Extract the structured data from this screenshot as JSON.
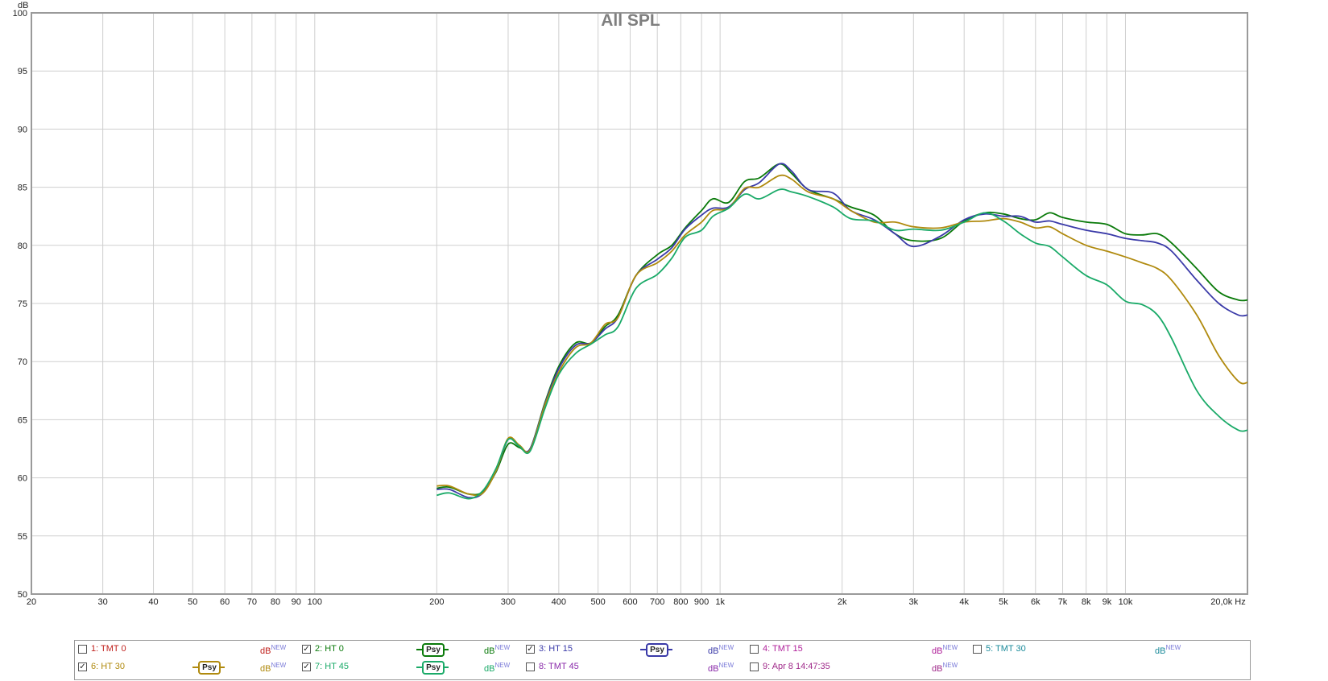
{
  "chart_data": {
    "type": "line",
    "title": "All SPL",
    "ylabel": "dB",
    "xunit": "Hz",
    "xscale": "log",
    "xlim": [
      20,
      20000
    ],
    "ylim": [
      50,
      100
    ],
    "grid": true,
    "yticks": [
      50,
      55,
      60,
      65,
      70,
      75,
      80,
      85,
      90,
      95,
      100
    ],
    "xticks": [
      {
        "v": 20,
        "label": "20"
      },
      {
        "v": 30,
        "label": "30"
      },
      {
        "v": 40,
        "label": "40"
      },
      {
        "v": 50,
        "label": "50"
      },
      {
        "v": 60,
        "label": "60"
      },
      {
        "v": 70,
        "label": "70"
      },
      {
        "v": 80,
        "label": "80"
      },
      {
        "v": 90,
        "label": "90"
      },
      {
        "v": 100,
        "label": "100"
      },
      {
        "v": 200,
        "label": "200"
      },
      {
        "v": 300,
        "label": "300"
      },
      {
        "v": 400,
        "label": "400"
      },
      {
        "v": 500,
        "label": "500"
      },
      {
        "v": 600,
        "label": "600"
      },
      {
        "v": 700,
        "label": "700"
      },
      {
        "v": 800,
        "label": "800"
      },
      {
        "v": 900,
        "label": "900"
      },
      {
        "v": 1000,
        "label": "1k"
      },
      {
        "v": 2000,
        "label": "2k"
      },
      {
        "v": 3000,
        "label": "3k"
      },
      {
        "v": 4000,
        "label": "4k"
      },
      {
        "v": 5000,
        "label": "5k"
      },
      {
        "v": 6000,
        "label": "6k"
      },
      {
        "v": 7000,
        "label": "7k"
      },
      {
        "v": 8000,
        "label": "8k"
      },
      {
        "v": 9000,
        "label": "9k"
      },
      {
        "v": 10000,
        "label": "10k"
      },
      {
        "v": 20000,
        "label": "20,0k Hz"
      }
    ],
    "series": [
      {
        "name": "2: HT 0",
        "color": "#0a7a0a",
        "points": [
          [
            200,
            59.1
          ],
          [
            215,
            59.2
          ],
          [
            240,
            58.6
          ],
          [
            260,
            58.8
          ],
          [
            280,
            60.5
          ],
          [
            300,
            62.9
          ],
          [
            320,
            62.6
          ],
          [
            340,
            62.5
          ],
          [
            370,
            66.5
          ],
          [
            400,
            69.6
          ],
          [
            440,
            71.6
          ],
          [
            480,
            71.6
          ],
          [
            520,
            73.0
          ],
          [
            560,
            74.0
          ],
          [
            620,
            77.4
          ],
          [
            700,
            79.2
          ],
          [
            760,
            80.0
          ],
          [
            820,
            81.5
          ],
          [
            900,
            83.0
          ],
          [
            960,
            84.0
          ],
          [
            1050,
            83.7
          ],
          [
            1150,
            85.5
          ],
          [
            1250,
            85.8
          ],
          [
            1400,
            87.0
          ],
          [
            1500,
            86.2
          ],
          [
            1650,
            84.8
          ],
          [
            1900,
            84.0
          ],
          [
            2100,
            83.3
          ],
          [
            2400,
            82.6
          ],
          [
            2700,
            81.0
          ],
          [
            3000,
            80.4
          ],
          [
            3500,
            80.6
          ],
          [
            4000,
            82.1
          ],
          [
            4500,
            82.8
          ],
          [
            5000,
            82.7
          ],
          [
            5500,
            82.3
          ],
          [
            6000,
            82.2
          ],
          [
            6500,
            82.8
          ],
          [
            7000,
            82.4
          ],
          [
            8000,
            82.0
          ],
          [
            9000,
            81.8
          ],
          [
            10000,
            81.0
          ],
          [
            11000,
            80.9
          ],
          [
            12000,
            81.0
          ],
          [
            13000,
            80.2
          ],
          [
            15000,
            78.0
          ],
          [
            17000,
            76.0
          ],
          [
            19000,
            75.3
          ],
          [
            20000,
            75.3
          ]
        ]
      },
      {
        "name": "3: HT 15",
        "color": "#3a3aa8",
        "points": [
          [
            200,
            59.0
          ],
          [
            215,
            59.0
          ],
          [
            240,
            58.3
          ],
          [
            260,
            58.7
          ],
          [
            280,
            60.6
          ],
          [
            300,
            63.3
          ],
          [
            320,
            62.7
          ],
          [
            340,
            62.5
          ],
          [
            370,
            66.4
          ],
          [
            400,
            69.4
          ],
          [
            440,
            71.4
          ],
          [
            480,
            71.6
          ],
          [
            520,
            72.8
          ],
          [
            560,
            73.8
          ],
          [
            620,
            77.4
          ],
          [
            700,
            78.8
          ],
          [
            760,
            79.8
          ],
          [
            820,
            81.4
          ],
          [
            900,
            82.6
          ],
          [
            960,
            83.2
          ],
          [
            1050,
            83.3
          ],
          [
            1150,
            84.8
          ],
          [
            1250,
            85.4
          ],
          [
            1400,
            87.0
          ],
          [
            1500,
            86.4
          ],
          [
            1650,
            84.8
          ],
          [
            1900,
            84.5
          ],
          [
            2100,
            83.0
          ],
          [
            2400,
            82.2
          ],
          [
            2700,
            81.0
          ],
          [
            3000,
            79.9
          ],
          [
            3500,
            80.8
          ],
          [
            4000,
            82.2
          ],
          [
            4500,
            82.7
          ],
          [
            5000,
            82.5
          ],
          [
            5500,
            82.5
          ],
          [
            6000,
            82.0
          ],
          [
            6500,
            82.1
          ],
          [
            7000,
            81.8
          ],
          [
            8000,
            81.3
          ],
          [
            9000,
            81.0
          ],
          [
            10000,
            80.6
          ],
          [
            11000,
            80.4
          ],
          [
            12000,
            80.2
          ],
          [
            13000,
            79.5
          ],
          [
            15000,
            77.0
          ],
          [
            17000,
            75.0
          ],
          [
            19000,
            74.0
          ],
          [
            20000,
            74.0
          ]
        ]
      },
      {
        "name": "6: HT 30",
        "color": "#b08a0e",
        "points": [
          [
            200,
            59.3
          ],
          [
            215,
            59.3
          ],
          [
            240,
            58.6
          ],
          [
            260,
            58.7
          ],
          [
            280,
            60.6
          ],
          [
            300,
            63.4
          ],
          [
            320,
            62.8
          ],
          [
            340,
            62.4
          ],
          [
            370,
            66.3
          ],
          [
            400,
            69.1
          ],
          [
            440,
            71.2
          ],
          [
            480,
            71.6
          ],
          [
            520,
            73.2
          ],
          [
            560,
            73.8
          ],
          [
            620,
            77.4
          ],
          [
            700,
            78.5
          ],
          [
            760,
            79.5
          ],
          [
            820,
            80.9
          ],
          [
            900,
            82.0
          ],
          [
            960,
            83.0
          ],
          [
            1050,
            83.2
          ],
          [
            1150,
            84.9
          ],
          [
            1250,
            85.0
          ],
          [
            1400,
            86.0
          ],
          [
            1500,
            85.7
          ],
          [
            1650,
            84.6
          ],
          [
            1900,
            84.0
          ],
          [
            2100,
            83.0
          ],
          [
            2400,
            82.0
          ],
          [
            2700,
            82.0
          ],
          [
            3000,
            81.6
          ],
          [
            3500,
            81.5
          ],
          [
            4000,
            82.0
          ],
          [
            4500,
            82.1
          ],
          [
            5000,
            82.3
          ],
          [
            5500,
            82.0
          ],
          [
            6000,
            81.5
          ],
          [
            6500,
            81.6
          ],
          [
            7000,
            81.0
          ],
          [
            8000,
            80.0
          ],
          [
            9000,
            79.5
          ],
          [
            10000,
            79.0
          ],
          [
            11000,
            78.5
          ],
          [
            12000,
            78.0
          ],
          [
            13000,
            77.0
          ],
          [
            15000,
            74.0
          ],
          [
            17000,
            70.5
          ],
          [
            19000,
            68.3
          ],
          [
            20000,
            68.2
          ]
        ]
      },
      {
        "name": "7: HT 45",
        "color": "#1aaa68",
        "points": [
          [
            200,
            58.5
          ],
          [
            215,
            58.7
          ],
          [
            240,
            58.2
          ],
          [
            260,
            58.9
          ],
          [
            280,
            60.8
          ],
          [
            300,
            63.3
          ],
          [
            320,
            62.7
          ],
          [
            340,
            62.3
          ],
          [
            370,
            66.0
          ],
          [
            400,
            68.9
          ],
          [
            440,
            70.7
          ],
          [
            480,
            71.5
          ],
          [
            520,
            72.3
          ],
          [
            560,
            73.0
          ],
          [
            620,
            76.3
          ],
          [
            700,
            77.5
          ],
          [
            760,
            78.9
          ],
          [
            820,
            80.7
          ],
          [
            900,
            81.3
          ],
          [
            960,
            82.5
          ],
          [
            1050,
            83.2
          ],
          [
            1150,
            84.4
          ],
          [
            1250,
            84.0
          ],
          [
            1400,
            84.8
          ],
          [
            1500,
            84.6
          ],
          [
            1650,
            84.2
          ],
          [
            1900,
            83.3
          ],
          [
            2100,
            82.3
          ],
          [
            2400,
            82.1
          ],
          [
            2700,
            81.3
          ],
          [
            3000,
            81.4
          ],
          [
            3500,
            81.3
          ],
          [
            4000,
            82.0
          ],
          [
            4500,
            82.8
          ],
          [
            5000,
            82.1
          ],
          [
            5500,
            81.0
          ],
          [
            6000,
            80.2
          ],
          [
            6500,
            79.9
          ],
          [
            7000,
            79.0
          ],
          [
            8000,
            77.4
          ],
          [
            9000,
            76.6
          ],
          [
            10000,
            75.2
          ],
          [
            11000,
            74.9
          ],
          [
            12000,
            74.0
          ],
          [
            13000,
            72.0
          ],
          [
            15000,
            67.5
          ],
          [
            17000,
            65.3
          ],
          [
            19000,
            64.1
          ],
          [
            20000,
            64.1
          ]
        ]
      }
    ]
  },
  "legend": {
    "db_label": "dB",
    "new_label": "NEW",
    "psy_label": "Psy",
    "row1": [
      {
        "label": "1: TMT 0",
        "color": "#c0201c",
        "checked": "",
        "has_psy": false
      },
      {
        "label": "2: HT 0",
        "color": "#0a7a0a",
        "checked": "✓",
        "has_psy": true
      },
      {
        "label": "3: HT 15",
        "color": "#3a3aa8",
        "checked": "✓",
        "has_psy": true
      },
      {
        "label": "4: TMT 15",
        "color": "#b0209a",
        "checked": "",
        "has_psy": false
      },
      {
        "label": "5: TMT 30",
        "color": "#1a8a9a",
        "checked": "",
        "has_psy": false
      }
    ],
    "row2": [
      {
        "label": "6: HT 30",
        "color": "#b08a0e",
        "checked": "✓",
        "has_psy": true
      },
      {
        "label": "7: HT 45",
        "color": "#1aaa68",
        "checked": "✓",
        "has_psy": true
      },
      {
        "label": "8: TMT 45",
        "color": "#8a2aaa",
        "checked": "",
        "has_psy": false
      },
      {
        "label": "9: Apr 8 14:47:35",
        "color": "#a02a8a",
        "checked": "",
        "has_psy": false
      }
    ]
  }
}
